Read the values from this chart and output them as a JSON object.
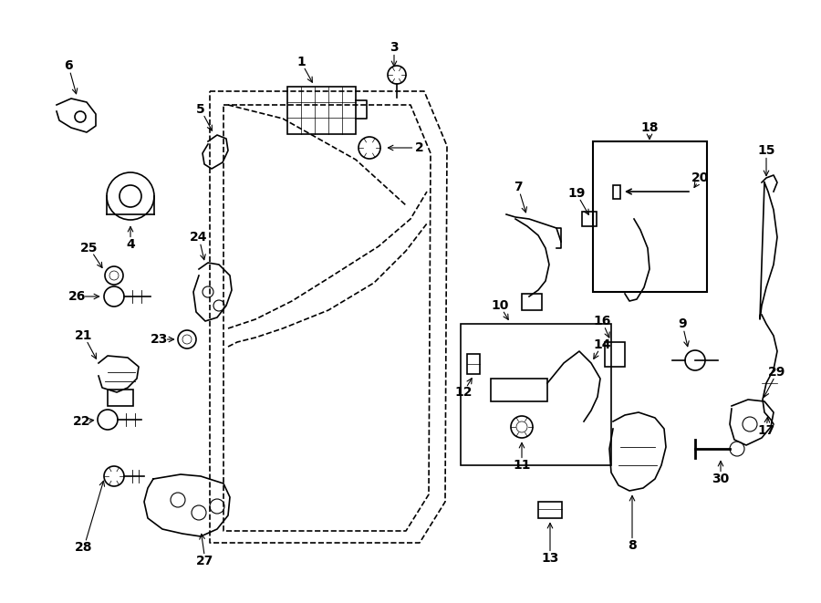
{
  "bg_color": "#ffffff",
  "line_color": "#000000",
  "fig_width": 9.0,
  "fig_height": 6.61,
  "dpi": 100,
  "xlim": [
    0,
    900
  ],
  "ylim": [
    0,
    661
  ]
}
